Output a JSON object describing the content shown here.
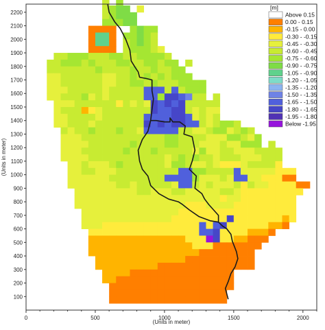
{
  "chart_data": {
    "type": "heatmap",
    "x_axis": {
      "label": "(Units in meter)",
      "range": [
        0,
        2100
      ],
      "ticks": [
        0,
        500,
        1000,
        1500,
        2000
      ]
    },
    "y_axis": {
      "label": "(Units in meter)",
      "range": [
        0,
        2260
      ],
      "ticks": [
        100,
        200,
        300,
        400,
        500,
        600,
        700,
        800,
        900,
        1000,
        1100,
        1200,
        1300,
        1400,
        1500,
        1600,
        1700,
        1800,
        1900,
        2000,
        2100,
        2200
      ]
    },
    "grid": false,
    "cell_size": 50,
    "legend": {
      "unit": "[m]",
      "position": "top-right",
      "entries": [
        {
          "label": "Above 0.15",
          "color": "#ffffff"
        },
        {
          "label": "0.00 - 0.15",
          "color": "#ff7f00"
        },
        {
          "label": "-0.15 - 0.00",
          "color": "#ffb400"
        },
        {
          "label": "-0.30 - -0.15",
          "color": "#ffeb3c"
        },
        {
          "label": "-0.45 - -0.30",
          "color": "#e6f03c"
        },
        {
          "label": "-0.60 - -0.45",
          "color": "#c8eb32"
        },
        {
          "label": "-0.75 - -0.60",
          "color": "#a5e632"
        },
        {
          "label": "-0.90 - -0.75",
          "color": "#7fdc46"
        },
        {
          "label": "-1.05 - -0.90",
          "color": "#5fd28c"
        },
        {
          "label": "-1.20 - -1.05",
          "color": "#7ddcc8"
        },
        {
          "label": "-1.35 - -1.20",
          "color": "#8cb4f0"
        },
        {
          "label": "-1.50 - -1.35",
          "color": "#6e82e6"
        },
        {
          "label": "-1.65 - -1.50",
          "color": "#5060dc"
        },
        {
          "label": "-1.80 - -1.65",
          "color": "#4646c8"
        },
        {
          "label": "-1.95 - -1.80",
          "color": "#5032b4"
        },
        {
          "label": "Below -1.95",
          "color": "#9614dc"
        }
      ]
    },
    "grid_rows_note": "rows from y=2250 down to y=100 (50 m each); columns from x=0 to x=2050 (50 m each); values are legend class indices (-1 = no data)",
    "grid_origin": {
      "x": 0,
      "y_top": 2250
    },
    "cells": [
      "...........5.6.......................................",
      "...........5677.4.....................................",
      "...........56777......................................",
      "...........66677......................................",
      ".........1111..6766...................................",
      ".........1881.66765...................................",
      ".........1881.56765...................................",
      ".........1111.566654..................................",
      "....55666555665566665.................................",
      "...5566656555665566566.5..............................",
      "...55555556555565565566...............................",
      "...445555554455656565666..............................",
      "...44555555445566565556666............................",
      "...44455555455555ccc5c5666............................",
      "...44555645455555cc6ddcb55.5..........................",
      "....44455555535454dcdcd55555..........................",
      "....45552345555555dccdd54544..........................",
      "....4455554555555ccccddc4545..........................",
      "....4455545555555dcdcddcc545665.......................",
      ".....545565556554ccccc55445664565....................",
      ".....44455555555555566555544466546....................",
      ".....44445555556555566555444544666.5..................",
      ".....44455555565556555554644554445555..................",
      ".....44445555555555545656554555444555.................",
      "......4454445655555546654454333455553..................",
      "......4455444555555555cc665555c44444333...............",
      "......44444455555555cccc644454cc4433311...............",
      "......4444444554555554cc54544453544333311..............",
      ".......444444444554445544444554333333333...............",
      ".......44444444444444444444434433333333................",
      ".......44444444444444443334444333333333................",
      "........4444444444444433333333333333333................",
      "........444444444444433333333d333333323................",
      "........44433333333333333c3cd333333221.................",
      ".........3333333333333333ccd33332221...................",
      ".........22222222222222333fd3322111....................",
      ".........2222222222222223331111111.....................",
      ".........222222222222222211111111......................",
      "..........22222222222221111111111......................",
      "..........22222222211111111111111......................",
      "...........2222111111111111111........................",
      "...........2211111111111111111.........................",
      "............111111111111111111.........................",
      "............11111111111111111..........................",
      "............11111111111111111.........................."
    ],
    "channel_polyline": [
      [
        590,
        2260
      ],
      [
        600,
        2200
      ],
      [
        640,
        2130
      ],
      [
        680,
        2080
      ],
      [
        720,
        2000
      ],
      [
        750,
        1920
      ],
      [
        760,
        1840
      ],
      [
        790,
        1790
      ],
      [
        810,
        1760
      ],
      [
        820,
        1720
      ],
      [
        870,
        1710
      ],
      [
        910,
        1700
      ],
      [
        910,
        1620
      ],
      [
        920,
        1560
      ],
      [
        910,
        1480
      ],
      [
        900,
        1400
      ],
      [
        940,
        1400
      ],
      [
        1000,
        1390
      ],
      [
        1040,
        1390
      ],
      [
        1040,
        1420
      ],
      [
        1060,
        1390
      ],
      [
        1110,
        1390
      ],
      [
        1150,
        1360
      ],
      [
        1140,
        1300
      ],
      [
        1200,
        1280
      ],
      [
        1220,
        1180
      ],
      [
        1200,
        1100
      ],
      [
        1180,
        1040
      ],
      [
        1230,
        990
      ],
      [
        1220,
        900
      ],
      [
        1270,
        860
      ],
      [
        1290,
        820
      ],
      [
        1320,
        780
      ],
      [
        1390,
        700
      ],
      [
        1390,
        650
      ],
      [
        1420,
        620
      ],
      [
        1450,
        600
      ],
      [
        1480,
        560
      ],
      [
        1490,
        510
      ],
      [
        1520,
        430
      ],
      [
        1530,
        380
      ],
      [
        1510,
        320
      ],
      [
        1480,
        270
      ],
      [
        1460,
        210
      ],
      [
        1440,
        160
      ],
      [
        1460,
        80
      ]
    ],
    "channel_polyline_2": [
      [
        900,
        1400
      ],
      [
        880,
        1320
      ],
      [
        840,
        1260
      ],
      [
        810,
        1180
      ],
      [
        820,
        1100
      ],
      [
        840,
        1040
      ],
      [
        880,
        990
      ],
      [
        900,
        920
      ],
      [
        960,
        860
      ],
      [
        1030,
        820
      ],
      [
        1100,
        800
      ],
      [
        1130,
        780
      ],
      [
        1180,
        740
      ],
      [
        1250,
        690
      ],
      [
        1330,
        660
      ],
      [
        1390,
        650
      ]
    ]
  }
}
